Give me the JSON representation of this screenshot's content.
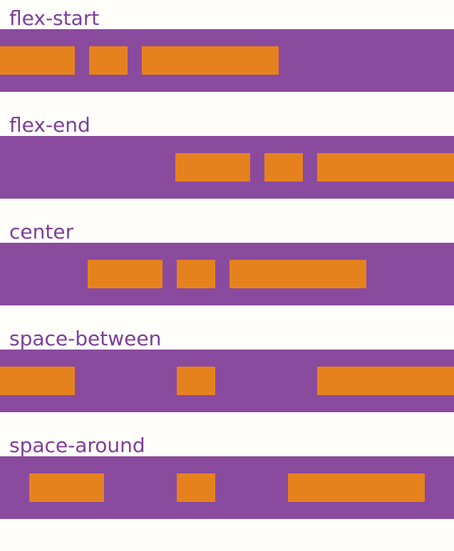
{
  "page": {
    "background": "#fffefb"
  },
  "colors": {
    "heading": "#7e3d99",
    "container": "#8a4a9e",
    "item": "#e6821e"
  },
  "sections": [
    {
      "label": "flex-start",
      "justify": "flex-start"
    },
    {
      "label": "flex-end",
      "justify": "flex-end"
    },
    {
      "label": "center",
      "justify": "center"
    },
    {
      "label": "space-between",
      "justify": "space-between"
    },
    {
      "label": "space-around",
      "justify": "space-around"
    }
  ],
  "items_per_container": 3
}
